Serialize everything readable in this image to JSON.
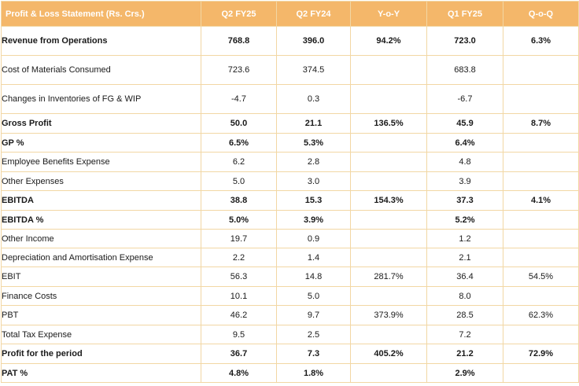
{
  "table": {
    "headers": [
      "Profit & Loss Statement (Rs. Crs.)",
      "Q2 FY25",
      "Q2 FY24",
      "Y-o-Y",
      "Q1 FY25",
      "Q-o-Q"
    ],
    "rows": [
      {
        "label": "Revenue from Operations",
        "values": [
          "768.8",
          "396.0",
          "94.2%",
          "723.0",
          "6.3%"
        ],
        "bold": true
      },
      {
        "label": "Cost of Materials Consumed",
        "values": [
          "723.6",
          "374.5",
          "",
          "683.8",
          ""
        ],
        "bold": false
      },
      {
        "label": "Changes in Inventories of FG & WIP",
        "values": [
          "-4.7",
          "0.3",
          "",
          "-6.7",
          ""
        ],
        "bold": false
      },
      {
        "label": "Gross Profit",
        "values": [
          "50.0",
          "21.1",
          "136.5%",
          "45.9",
          "8.7%"
        ],
        "bold": true
      },
      {
        "label": "GP %",
        "values": [
          "6.5%",
          "5.3%",
          "",
          "6.4%",
          ""
        ],
        "bold": true
      },
      {
        "label": "Employee Benefits Expense",
        "values": [
          "6.2",
          "2.8",
          "",
          "4.8",
          ""
        ],
        "bold": false
      },
      {
        "label": "Other Expenses",
        "values": [
          "5.0",
          "3.0",
          "",
          "3.9",
          ""
        ],
        "bold": false
      },
      {
        "label": "EBITDA",
        "values": [
          "38.8",
          "15.3",
          "154.3%",
          "37.3",
          "4.1%"
        ],
        "bold": true
      },
      {
        "label": "EBITDA %",
        "values": [
          "5.0%",
          "3.9%",
          "",
          "5.2%",
          ""
        ],
        "bold": true
      },
      {
        "label": "Other Income",
        "values": [
          "19.7",
          "0.9",
          "",
          "1.2",
          ""
        ],
        "bold": false
      },
      {
        "label": "Depreciation and Amortisation Expense",
        "values": [
          "2.2",
          "1.4",
          "",
          "2.1",
          ""
        ],
        "bold": false
      },
      {
        "label": "EBIT",
        "values": [
          "56.3",
          "14.8",
          "281.7%",
          "36.4",
          "54.5%"
        ],
        "bold": false
      },
      {
        "label": "Finance Costs",
        "values": [
          "10.1",
          "5.0",
          "",
          "8.0",
          ""
        ],
        "bold": false
      },
      {
        "label": "PBT",
        "values": [
          "46.2",
          "9.7",
          "373.9%",
          "28.5",
          "62.3%"
        ],
        "bold": false
      },
      {
        "label": "Total Tax Expense",
        "values": [
          "9.5",
          "2.5",
          "",
          "7.2",
          ""
        ],
        "bold": false
      },
      {
        "label": "Profit for the period",
        "values": [
          "36.7",
          "7.3",
          "405.2%",
          "21.2",
          "72.9%"
        ],
        "bold": true
      },
      {
        "label": "PAT %",
        "values": [
          "4.8%",
          "1.8%",
          "",
          "2.9%",
          ""
        ],
        "bold": true
      }
    ]
  }
}
